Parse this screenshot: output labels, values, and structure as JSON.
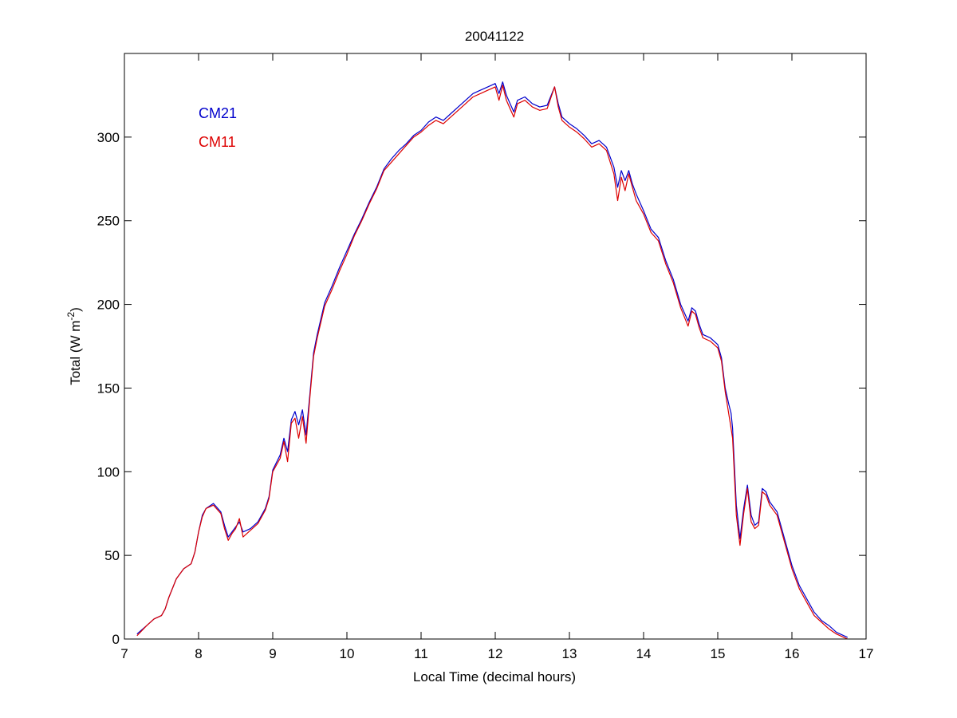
{
  "chart_data": {
    "type": "line",
    "title": "20041122",
    "xlabel": "Local Time (decimal hours)",
    "ylabel": "Total (W m",
    "ylabel_sup": "-2",
    "ylabel_end": ")",
    "xlim": [
      7,
      17
    ],
    "ylim": [
      0,
      350
    ],
    "xticks": [
      7,
      8,
      9,
      10,
      11,
      12,
      13,
      14,
      15,
      16,
      17
    ],
    "yticks": [
      0,
      50,
      100,
      150,
      200,
      250,
      300
    ],
    "grid": false,
    "legend_position": "top-left",
    "series": [
      {
        "name": "CM21",
        "color": "#0000cc",
        "x": [
          7.17,
          7.3,
          7.4,
          7.5,
          7.55,
          7.6,
          7.7,
          7.8,
          7.9,
          7.95,
          8.0,
          8.05,
          8.1,
          8.2,
          8.3,
          8.35,
          8.4,
          8.45,
          8.5,
          8.55,
          8.6,
          8.7,
          8.8,
          8.9,
          8.95,
          9.0,
          9.1,
          9.15,
          9.2,
          9.25,
          9.3,
          9.35,
          9.4,
          9.45,
          9.5,
          9.55,
          9.6,
          9.7,
          9.8,
          9.9,
          10.0,
          10.1,
          10.2,
          10.3,
          10.4,
          10.5,
          10.6,
          10.7,
          10.8,
          10.9,
          11.0,
          11.1,
          11.2,
          11.3,
          11.4,
          11.5,
          11.6,
          11.7,
          11.8,
          11.9,
          12.0,
          12.05,
          12.1,
          12.15,
          12.2,
          12.25,
          12.3,
          12.4,
          12.5,
          12.6,
          12.7,
          12.8,
          12.85,
          12.9,
          13.0,
          13.1,
          13.2,
          13.3,
          13.4,
          13.5,
          13.6,
          13.65,
          13.7,
          13.75,
          13.8,
          13.85,
          13.9,
          14.0,
          14.1,
          14.2,
          14.3,
          14.4,
          14.5,
          14.6,
          14.65,
          14.7,
          14.75,
          14.8,
          14.9,
          15.0,
          15.05,
          15.1,
          15.15,
          15.18,
          15.2,
          15.25,
          15.3,
          15.35,
          15.4,
          15.45,
          15.5,
          15.55,
          15.6,
          15.65,
          15.7,
          15.8,
          15.9,
          16.0,
          16.1,
          16.2,
          16.3,
          16.4,
          16.5,
          16.6,
          16.7,
          16.75
        ],
        "y": [
          3,
          8,
          12,
          14,
          18,
          25,
          36,
          42,
          45,
          52,
          64,
          74,
          78,
          81,
          76,
          68,
          61,
          64,
          67,
          70,
          64,
          66,
          70,
          78,
          85,
          101,
          110,
          120,
          112,
          131,
          136,
          128,
          137,
          122,
          146,
          171,
          182,
          201,
          211,
          222,
          232,
          242,
          251,
          261,
          270,
          281,
          287,
          292,
          296,
          301,
          304,
          309,
          312,
          310,
          314,
          318,
          322,
          326,
          328,
          330,
          332,
          326,
          333,
          325,
          320,
          315,
          322,
          324,
          320,
          318,
          319,
          330,
          320,
          312,
          308,
          305,
          301,
          296,
          298,
          294,
          282,
          270,
          280,
          274,
          280,
          272,
          266,
          256,
          245,
          240,
          226,
          215,
          200,
          190,
          198,
          196,
          188,
          182,
          180,
          176,
          168,
          150,
          140,
          135,
          126,
          80,
          60,
          78,
          92,
          74,
          68,
          70,
          90,
          88,
          82,
          76,
          60,
          44,
          32,
          24,
          16,
          11,
          8,
          4,
          2,
          1
        ]
      },
      {
        "name": "CM11",
        "color": "#dd0000",
        "x": [
          7.17,
          7.3,
          7.4,
          7.5,
          7.55,
          7.6,
          7.7,
          7.8,
          7.9,
          7.95,
          8.0,
          8.05,
          8.1,
          8.2,
          8.3,
          8.35,
          8.4,
          8.45,
          8.5,
          8.55,
          8.6,
          8.7,
          8.8,
          8.9,
          8.95,
          9.0,
          9.1,
          9.15,
          9.2,
          9.25,
          9.3,
          9.35,
          9.4,
          9.45,
          9.5,
          9.55,
          9.6,
          9.7,
          9.8,
          9.9,
          10.0,
          10.1,
          10.2,
          10.3,
          10.4,
          10.5,
          10.6,
          10.7,
          10.8,
          10.9,
          11.0,
          11.1,
          11.2,
          11.3,
          11.4,
          11.5,
          11.6,
          11.7,
          11.8,
          11.9,
          12.0,
          12.05,
          12.1,
          12.15,
          12.2,
          12.25,
          12.3,
          12.4,
          12.5,
          12.6,
          12.7,
          12.8,
          12.85,
          12.9,
          13.0,
          13.1,
          13.2,
          13.3,
          13.4,
          13.5,
          13.6,
          13.65,
          13.7,
          13.75,
          13.8,
          13.85,
          13.9,
          14.0,
          14.1,
          14.2,
          14.3,
          14.4,
          14.5,
          14.6,
          14.65,
          14.7,
          14.75,
          14.8,
          14.9,
          15.0,
          15.05,
          15.1,
          15.15,
          15.18,
          15.2,
          15.25,
          15.3,
          15.35,
          15.4,
          15.45,
          15.5,
          15.55,
          15.6,
          15.65,
          15.7,
          15.8,
          15.9,
          16.0,
          16.1,
          16.2,
          16.3,
          16.4,
          16.5,
          16.6,
          16.7,
          16.75
        ],
        "y": [
          2,
          8,
          12,
          14,
          18,
          25,
          36,
          42,
          45,
          52,
          64,
          73,
          78,
          80,
          75,
          66,
          59,
          63,
          66,
          72,
          61,
          65,
          69,
          77,
          84,
          100,
          108,
          118,
          106,
          129,
          132,
          120,
          133,
          117,
          144,
          169,
          180,
          199,
          209,
          220,
          230,
          241,
          250,
          260,
          269,
          280,
          285,
          290,
          295,
          300,
          303,
          307,
          310,
          308,
          312,
          316,
          320,
          324,
          326,
          328,
          330,
          322,
          331,
          322,
          317,
          312,
          320,
          322,
          318,
          316,
          317,
          330,
          318,
          310,
          306,
          303,
          299,
          294,
          296,
          292,
          278,
          262,
          276,
          268,
          278,
          270,
          262,
          254,
          243,
          238,
          224,
          213,
          198,
          187,
          196,
          194,
          186,
          180,
          178,
          174,
          166,
          148,
          134,
          126,
          120,
          74,
          56,
          75,
          90,
          70,
          66,
          68,
          88,
          86,
          80,
          74,
          58,
          42,
          30,
          22,
          14,
          10,
          6,
          3,
          1,
          0
        ]
      }
    ]
  }
}
